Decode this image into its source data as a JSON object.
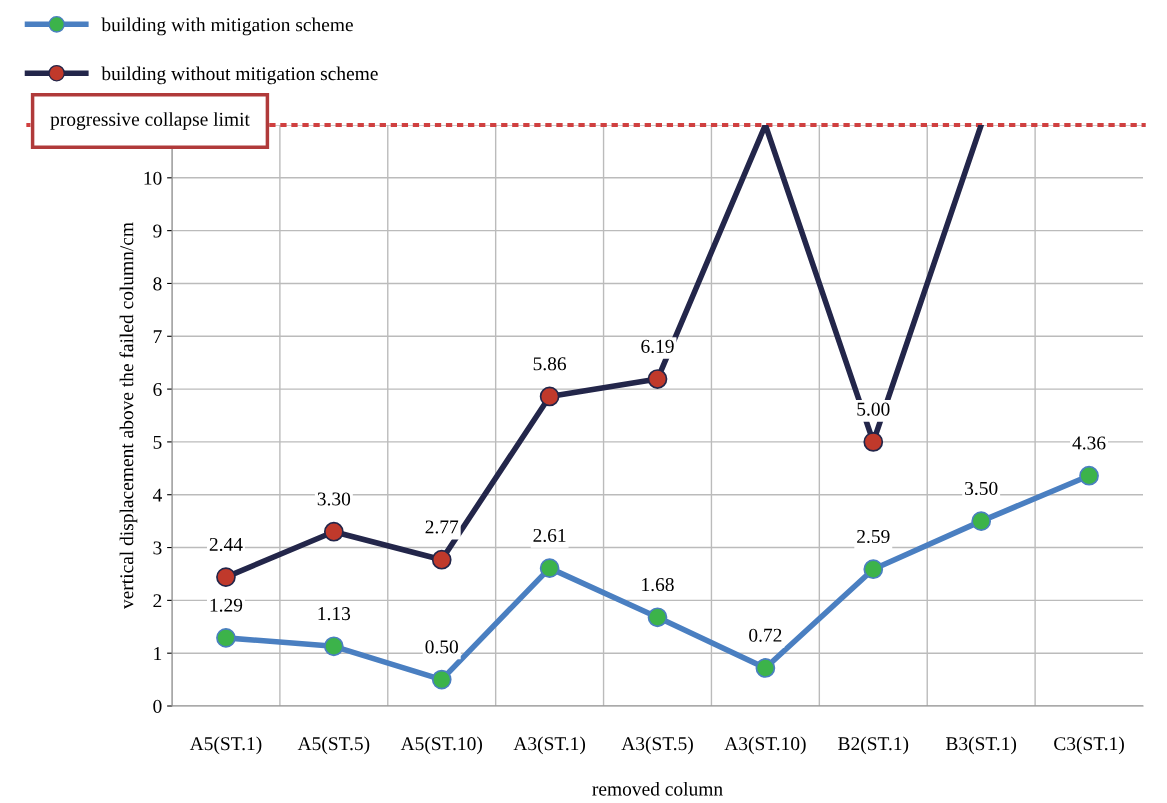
{
  "chart_data": {
    "type": "line",
    "xlabel": "removed column",
    "ylabel": "vertical displacement above the failed column/cm",
    "categories": [
      "A5(ST.1)",
      "A5(ST.5)",
      "A5(ST.10)",
      "A3(ST.1)",
      "A3(ST.5)",
      "A3(ST.10)",
      "B2(ST.1)",
      "B3(ST.1)",
      "C3(ST.1)"
    ],
    "series": [
      {
        "name": "building with mitigation scheme",
        "color": "#4a7fc1",
        "colors": [
          "#3cb34a",
          "#3cb34a",
          "#3cb34a",
          "#3cb34a",
          "#3cb34a",
          "#3cb34a",
          "#3cb34a",
          "#3cb34a",
          "#3cb34a"
        ],
        "values": [
          1.29,
          1.13,
          0.5,
          2.61,
          1.68,
          0.72,
          2.59,
          3.5,
          4.36
        ],
        "value_labels": [
          "1.29",
          "1.13",
          "0.50",
          "2.61",
          "1.68",
          "0.72",
          "2.59",
          "3.50",
          "4.36"
        ]
      },
      {
        "name": "building without mitigation scheme",
        "color": "#23264a",
        "colors": [
          "#c0392b",
          "#c0392b",
          "#c0392b",
          "#c0392b",
          "#c0392b",
          null,
          "#c0392b",
          null,
          null
        ],
        "values": [
          2.44,
          3.3,
          2.77,
          5.86,
          6.19,
          11,
          5.0,
          11,
          null
        ],
        "value_labels": [
          "2.44",
          "3.30",
          "2.77",
          "5.86",
          "6.19",
          null,
          "5.00",
          null,
          null
        ]
      }
    ],
    "ylim": [
      0,
      11
    ],
    "yticks": [
      0,
      1,
      2,
      3,
      4,
      5,
      6,
      7,
      8,
      9,
      10,
      {
        "value": 11,
        "label": null
      }
    ],
    "ref_lines": [
      {
        "axis": "y",
        "value": 11,
        "label": "progressive collapse limit",
        "color": "#d04040",
        "line_style": "dotted"
      }
    ],
    "grid": true,
    "legend": "top left",
    "marker": "circle",
    "line_style": "solid"
  }
}
